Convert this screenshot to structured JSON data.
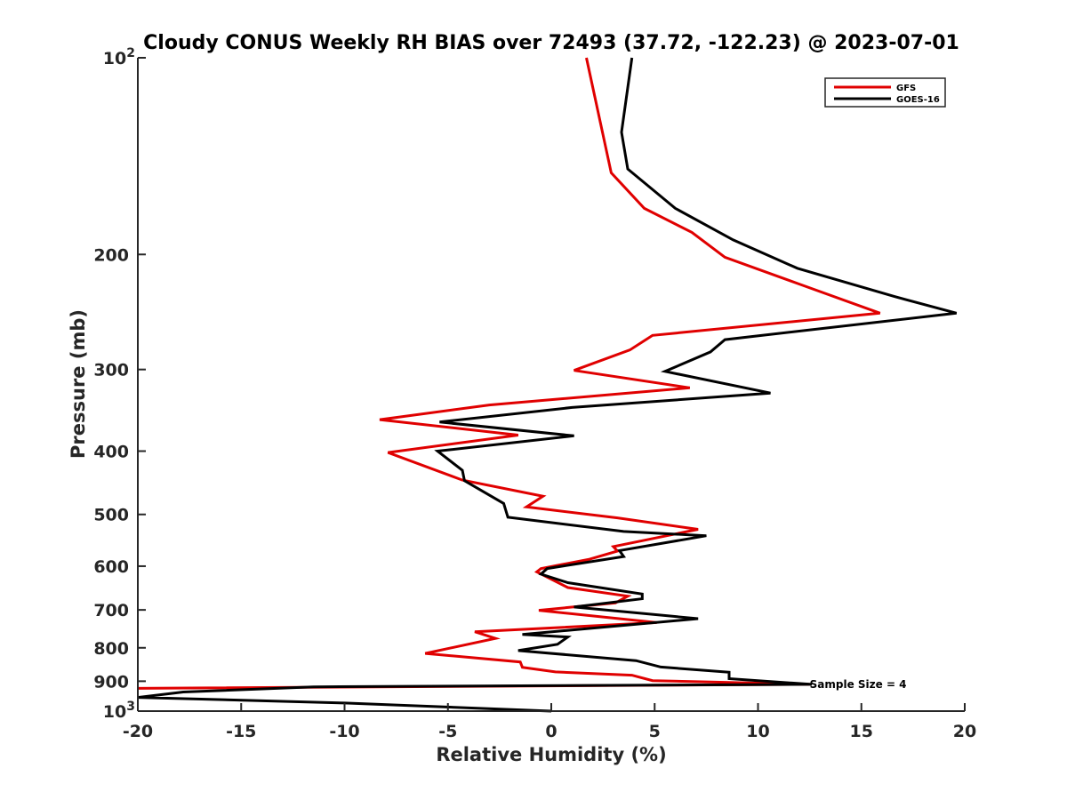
{
  "chart_data": {
    "type": "line",
    "title": "Cloudy CONUS Weekly RH BIAS over 72493 (37.72, -122.23) @ 2023-07-01",
    "xlabel": "Relative Humidity (%)",
    "ylabel": "Pressure (mb)",
    "xlim": [
      -20,
      20
    ],
    "ylim": [
      100,
      1000
    ],
    "yscale": "log",
    "yreversed": true,
    "grid": false,
    "legend_position": "top-right",
    "x_ticks": [
      {
        "value": -20,
        "label": "-20"
      },
      {
        "value": -15,
        "label": "-15"
      },
      {
        "value": -10,
        "label": "-10"
      },
      {
        "value": -5,
        "label": "-5"
      },
      {
        "value": 0,
        "label": "0"
      },
      {
        "value": 5,
        "label": "5"
      },
      {
        "value": 10,
        "label": "10"
      },
      {
        "value": 15,
        "label": "15"
      },
      {
        "value": 20,
        "label": "20"
      }
    ],
    "y_ticks": [
      {
        "value": 100,
        "label": "10",
        "sup": "2"
      },
      {
        "value": 200,
        "label": "200"
      },
      {
        "value": 300,
        "label": "300"
      },
      {
        "value": 400,
        "label": "400"
      },
      {
        "value": 500,
        "label": "500"
      },
      {
        "value": 600,
        "label": "600"
      },
      {
        "value": 700,
        "label": "700"
      },
      {
        "value": 800,
        "label": "800"
      },
      {
        "value": 900,
        "label": "900"
      },
      {
        "value": 1000,
        "label": "10",
        "sup": "3"
      }
    ],
    "series": [
      {
        "name": "GFS",
        "color": "#e00000",
        "points": [
          [
            1.7,
            100
          ],
          [
            2.9,
            150
          ],
          [
            4.5,
            170
          ],
          [
            6.8,
            185
          ],
          [
            8.4,
            202
          ],
          [
            12.0,
            222
          ],
          [
            15.9,
            246
          ],
          [
            4.9,
            266
          ],
          [
            3.8,
            280
          ],
          [
            1.1,
            301
          ],
          [
            6.7,
            320
          ],
          [
            -3.0,
            340
          ],
          [
            -8.3,
            358
          ],
          [
            -1.6,
            378
          ],
          [
            -7.9,
            402
          ],
          [
            -4.3,
            443
          ],
          [
            -0.4,
            469
          ],
          [
            -1.2,
            487
          ],
          [
            3.2,
            506
          ],
          [
            7.1,
            527
          ],
          [
            3.0,
            560
          ],
          [
            3.2,
            569
          ],
          [
            1.8,
            586
          ],
          [
            -0.5,
            605
          ],
          [
            -0.7,
            612
          ],
          [
            0.8,
            647
          ],
          [
            3.7,
            667
          ],
          [
            3.1,
            683
          ],
          [
            -0.6,
            701
          ],
          [
            5.1,
            732
          ],
          [
            -3.7,
            756
          ],
          [
            -2.7,
            774
          ],
          [
            -6.1,
            816
          ],
          [
            -1.5,
            841
          ],
          [
            -1.4,
            857
          ],
          [
            0.2,
            871
          ],
          [
            3.9,
            881
          ],
          [
            4.9,
            898
          ],
          [
            12.5,
            910
          ],
          [
            -20.0,
            923
          ]
        ]
      },
      {
        "name": "GOES-16",
        "color": "#000000",
        "points": [
          [
            3.9,
            100
          ],
          [
            3.4,
            130
          ],
          [
            3.7,
            148
          ],
          [
            6.0,
            170
          ],
          [
            8.8,
            190
          ],
          [
            11.9,
            210
          ],
          [
            16.6,
            232
          ],
          [
            19.6,
            246
          ],
          [
            8.4,
            270
          ],
          [
            7.7,
            282
          ],
          [
            5.5,
            302
          ],
          [
            10.6,
            326
          ],
          [
            1.0,
            343
          ],
          [
            -5.4,
            361
          ],
          [
            1.1,
            379
          ],
          [
            -5.5,
            400
          ],
          [
            -4.3,
            428
          ],
          [
            -4.2,
            444
          ],
          [
            -2.3,
            481
          ],
          [
            -2.1,
            505
          ],
          [
            3.5,
            531
          ],
          [
            7.5,
            539
          ],
          [
            3.3,
            568
          ],
          [
            3.5,
            580
          ],
          [
            -0.2,
            605
          ],
          [
            -0.5,
            617
          ],
          [
            0.8,
            636
          ],
          [
            4.4,
            662
          ],
          [
            4.4,
            673
          ],
          [
            1.1,
            693
          ],
          [
            7.1,
            722
          ],
          [
            -1.4,
            763
          ],
          [
            0.8,
            770
          ],
          [
            0.3,
            790
          ],
          [
            -1.6,
            808
          ],
          [
            4.1,
            837
          ],
          [
            5.3,
            856
          ],
          [
            8.6,
            872
          ],
          [
            8.6,
            892
          ],
          [
            12.6,
            910
          ],
          [
            -11.5,
            918
          ],
          [
            -17.8,
            935
          ],
          [
            -20.0,
            953
          ],
          [
            -10.0,
            972
          ],
          [
            0.0,
            1000
          ]
        ]
      }
    ],
    "annotations": [
      {
        "text": "Sample Size = 4",
        "x": 12.5,
        "y": 910
      }
    ]
  }
}
